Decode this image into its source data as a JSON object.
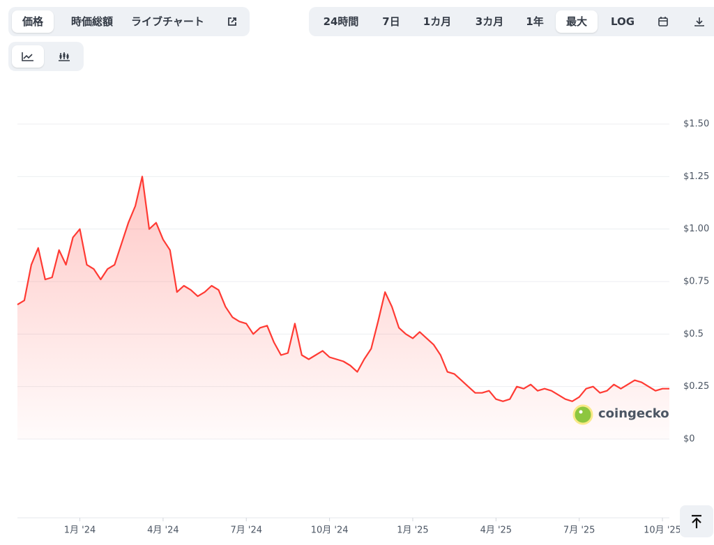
{
  "toolbar": {
    "tabs": [
      "価格",
      "時価総額",
      "ライブチャート"
    ],
    "ranges": [
      "24時間",
      "7日",
      "1カ月",
      "3カ月",
      "1年",
      "最大",
      "LOG"
    ]
  },
  "watermark": "coingecko",
  "chart_data": {
    "type": "line",
    "categories": [
      null,
      null,
      null,
      null,
      null,
      null,
      null,
      null,
      null,
      "1月 '24",
      null,
      null,
      null,
      null,
      null,
      null,
      null,
      null,
      null,
      null,
      null,
      "4月 '24",
      null,
      null,
      null,
      null,
      null,
      null,
      null,
      null,
      null,
      null,
      null,
      "7月 '24",
      null,
      null,
      null,
      null,
      null,
      null,
      null,
      null,
      null,
      null,
      null,
      "10月 '24",
      null,
      null,
      null,
      null,
      null,
      null,
      null,
      null,
      null,
      null,
      null,
      "1月 '25",
      null,
      null,
      null,
      null,
      null,
      null,
      null,
      null,
      null,
      null,
      null,
      "4月 '25",
      null,
      null,
      null,
      null,
      null,
      null,
      null,
      null,
      null,
      null,
      null,
      "7月 '25",
      null,
      null,
      null,
      null,
      null,
      null,
      null,
      null,
      null,
      null,
      null,
      "10月 '25",
      null
    ],
    "series": [
      {
        "color": "#ff3a33",
        "values": [
          0.64,
          0.66,
          0.83,
          0.91,
          0.76,
          0.77,
          0.9,
          0.83,
          0.96,
          1.0,
          0.83,
          0.81,
          0.76,
          0.81,
          0.83,
          0.93,
          1.03,
          1.11,
          1.25,
          1.0,
          1.03,
          0.95,
          0.9,
          0.7,
          0.73,
          0.71,
          0.68,
          0.7,
          0.73,
          0.71,
          0.63,
          0.58,
          0.56,
          0.55,
          0.5,
          0.53,
          0.54,
          0.46,
          0.4,
          0.41,
          0.55,
          0.4,
          0.38,
          0.4,
          0.42,
          0.39,
          0.38,
          0.37,
          0.35,
          0.32,
          0.38,
          0.43,
          0.56,
          0.7,
          0.63,
          0.53,
          0.5,
          0.48,
          0.51,
          0.48,
          0.45,
          0.4,
          0.32,
          0.31,
          0.28,
          0.25,
          0.22,
          0.22,
          0.23,
          0.19,
          0.18,
          0.19,
          0.25,
          0.24,
          0.26,
          0.23,
          0.24,
          0.23,
          0.21,
          0.19,
          0.18,
          0.2,
          0.24,
          0.25,
          0.22,
          0.23,
          0.26,
          0.24,
          0.26,
          0.28,
          0.27,
          0.25,
          0.23,
          0.24,
          0.24
        ]
      }
    ],
    "ylim": [
      0,
      1.5
    ],
    "yticks": [
      {
        "value": 0,
        "label": "$0"
      },
      {
        "value": 0.25,
        "label": "$0.25"
      },
      {
        "value": 0.5,
        "label": "$0.5"
      },
      {
        "value": 0.75,
        "label": "$0.75"
      },
      {
        "value": 1,
        "label": "$1.00"
      },
      {
        "value": 1.25,
        "label": "$1.25"
      },
      {
        "value": 1.5,
        "label": "$1.50"
      }
    ],
    "grid": true
  }
}
